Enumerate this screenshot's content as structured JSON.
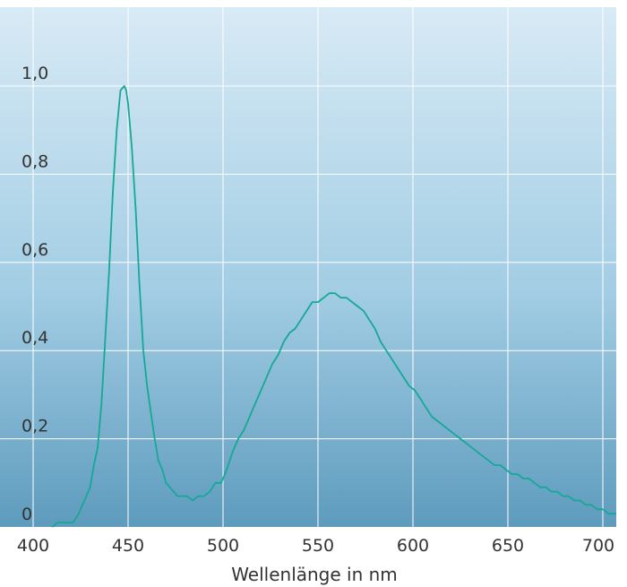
{
  "chart_data": {
    "type": "line",
    "title": "",
    "xlabel": "Wellenlänge in nm",
    "ylabel": "",
    "xlim": [
      400,
      710
    ],
    "ylim": [
      0,
      1.15
    ],
    "grid": true,
    "xticks": [
      {
        "value": 400,
        "label": "400"
      },
      {
        "value": 450,
        "label": "450"
      },
      {
        "value": 500,
        "label": "500"
      },
      {
        "value": 550,
        "label": "550"
      },
      {
        "value": 600,
        "label": "600"
      },
      {
        "value": 650,
        "label": "650"
      },
      {
        "value": 700,
        "label": "700"
      }
    ],
    "yticks": [
      {
        "value": 0,
        "label": "0"
      },
      {
        "value": 0.2,
        "label": "0,2"
      },
      {
        "value": 0.4,
        "label": "0,4"
      },
      {
        "value": 0.6,
        "label": "0,6"
      },
      {
        "value": 0.8,
        "label": "0,8"
      },
      {
        "value": 1.0,
        "label": "1,0"
      }
    ],
    "series": [
      {
        "color": "#16a896",
        "x": [
          410,
          413,
          417,
          421,
          424,
          426,
          428,
          430,
          432,
          434,
          436,
          438,
          440,
          442,
          444,
          446,
          448,
          449,
          450,
          452,
          454,
          456,
          458,
          460,
          462,
          464,
          466,
          468,
          470,
          472,
          474,
          476,
          478,
          481,
          484,
          487,
          490,
          493,
          496,
          499,
          502,
          505,
          508,
          511,
          514,
          517,
          520,
          523,
          526,
          529,
          532,
          535,
          538,
          541,
          544,
          547,
          550,
          553,
          556,
          559,
          562,
          565,
          568,
          571,
          574,
          577,
          580,
          583,
          586,
          589,
          592,
          595,
          598,
          601,
          604,
          607,
          610,
          613,
          616,
          619,
          622,
          625,
          628,
          631,
          634,
          637,
          640,
          643,
          646,
          649,
          652,
          655,
          658,
          661,
          664,
          667,
          670,
          673,
          676,
          679,
          682,
          685,
          688,
          691,
          694,
          697,
          700,
          703,
          706,
          710
        ],
        "y": [
          0.0,
          0.01,
          0.01,
          0.01,
          0.03,
          0.05,
          0.07,
          0.09,
          0.14,
          0.18,
          0.28,
          0.43,
          0.58,
          0.76,
          0.9,
          0.99,
          1.0,
          0.99,
          0.96,
          0.86,
          0.72,
          0.55,
          0.4,
          0.32,
          0.26,
          0.2,
          0.15,
          0.13,
          0.1,
          0.09,
          0.08,
          0.07,
          0.07,
          0.07,
          0.06,
          0.07,
          0.07,
          0.08,
          0.1,
          0.1,
          0.13,
          0.17,
          0.2,
          0.22,
          0.25,
          0.28,
          0.31,
          0.34,
          0.37,
          0.39,
          0.42,
          0.44,
          0.45,
          0.47,
          0.49,
          0.51,
          0.51,
          0.52,
          0.53,
          0.53,
          0.52,
          0.52,
          0.51,
          0.5,
          0.49,
          0.47,
          0.45,
          0.42,
          0.4,
          0.38,
          0.36,
          0.34,
          0.32,
          0.31,
          0.29,
          0.27,
          0.25,
          0.24,
          0.23,
          0.22,
          0.21,
          0.2,
          0.19,
          0.18,
          0.17,
          0.16,
          0.15,
          0.14,
          0.14,
          0.13,
          0.12,
          0.12,
          0.11,
          0.11,
          0.1,
          0.09,
          0.09,
          0.08,
          0.08,
          0.07,
          0.07,
          0.06,
          0.06,
          0.05,
          0.05,
          0.04,
          0.04,
          0.03,
          0.03,
          0.03
        ]
      }
    ]
  }
}
